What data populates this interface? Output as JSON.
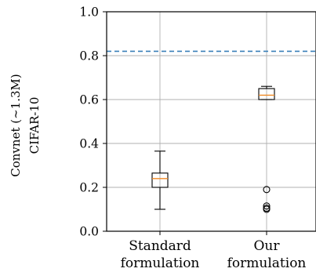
{
  "chart_data": {
    "type": "box",
    "ylabel_lines": [
      "Convnet (~1.3M)",
      "CIFAR-10"
    ],
    "ylim": [
      0.0,
      1.0
    ],
    "yticks": [
      "0.0",
      "0.2",
      "0.4",
      "0.6",
      "0.8",
      "1.0"
    ],
    "grid": true,
    "reference_line": {
      "value": 0.82,
      "style": "dashed",
      "color": "#3a80b8"
    },
    "categories": [
      {
        "label_lines": [
          "Standard",
          "formulation"
        ]
      },
      {
        "label_lines": [
          "Our",
          "formulation"
        ]
      }
    ],
    "boxes": [
      {
        "whisker_low": 0.1,
        "q1": 0.2,
        "median": 0.24,
        "q3": 0.265,
        "whisker_high": 0.365,
        "outliers": []
      },
      {
        "whisker_low": 0.6,
        "q1": 0.6,
        "median": 0.62,
        "q3": 0.65,
        "whisker_high": 0.66,
        "outliers": [
          0.19,
          0.115,
          0.105,
          0.1
        ]
      }
    ],
    "colors": {
      "median": "#f08a24",
      "box": "#000000",
      "grid": "#b0b0b0",
      "reference": "#3a80b8"
    }
  }
}
